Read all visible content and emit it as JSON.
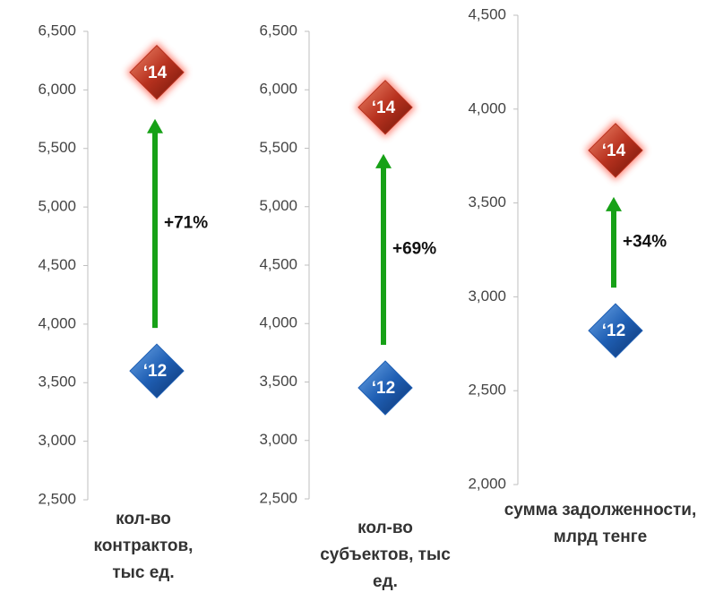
{
  "chart_data": [
    {
      "type": "change",
      "ylim": [
        2500,
        6500
      ],
      "yticks": [
        {
          "value": 2500,
          "label": "2,500"
        },
        {
          "value": 3000,
          "label": "3,000"
        },
        {
          "value": 3500,
          "label": "3,500"
        },
        {
          "value": 4000,
          "label": "4,000"
        },
        {
          "value": 4500,
          "label": "4,500"
        },
        {
          "value": 5000,
          "label": "5,000"
        },
        {
          "value": 5500,
          "label": "5,500"
        },
        {
          "value": 6000,
          "label": "6,000"
        },
        {
          "value": 6500,
          "label": "6,500"
        }
      ],
      "series": [
        {
          "name": "‘12",
          "color": "#1f5fb4",
          "values": [
            3600
          ]
        },
        {
          "name": "‘14",
          "color": "#b8321f",
          "values": [
            6150
          ]
        }
      ],
      "annotation": "+71%",
      "xlabel": "кол-во контрактов, тыс ед."
    },
    {
      "type": "change",
      "ylim": [
        2500,
        6500
      ],
      "yticks": [
        {
          "value": 2500,
          "label": "2,500"
        },
        {
          "value": 3000,
          "label": "3,000"
        },
        {
          "value": 3500,
          "label": "3,500"
        },
        {
          "value": 4000,
          "label": "4,000"
        },
        {
          "value": 4500,
          "label": "4,500"
        },
        {
          "value": 5000,
          "label": "5,000"
        },
        {
          "value": 5500,
          "label": "5,500"
        },
        {
          "value": 6000,
          "label": "6,000"
        },
        {
          "value": 6500,
          "label": "6,500"
        }
      ],
      "series": [
        {
          "name": "‘12",
          "color": "#1f5fb4",
          "values": [
            3450
          ]
        },
        {
          "name": "‘14",
          "color": "#b8321f",
          "values": [
            5850
          ]
        }
      ],
      "annotation": "+69%",
      "xlabel": "кол-во субъектов, тыс ед."
    },
    {
      "type": "change",
      "ylim": [
        2000,
        4500
      ],
      "yticks": [
        {
          "value": 2000,
          "label": "2,000"
        },
        {
          "value": 2500,
          "label": "2,500"
        },
        {
          "value": 3000,
          "label": "3,000"
        },
        {
          "value": 3500,
          "label": "3,500"
        },
        {
          "value": 4000,
          "label": "4,000"
        },
        {
          "value": 4500,
          "label": "4,500"
        }
      ],
      "series": [
        {
          "name": "‘12",
          "color": "#1f5fb4",
          "values": [
            2820
          ]
        },
        {
          "name": "‘14",
          "color": "#b8321f",
          "values": [
            3780
          ]
        }
      ],
      "annotation": "+34%",
      "xlabel": "сумма задолженности, млрд тенге"
    }
  ]
}
